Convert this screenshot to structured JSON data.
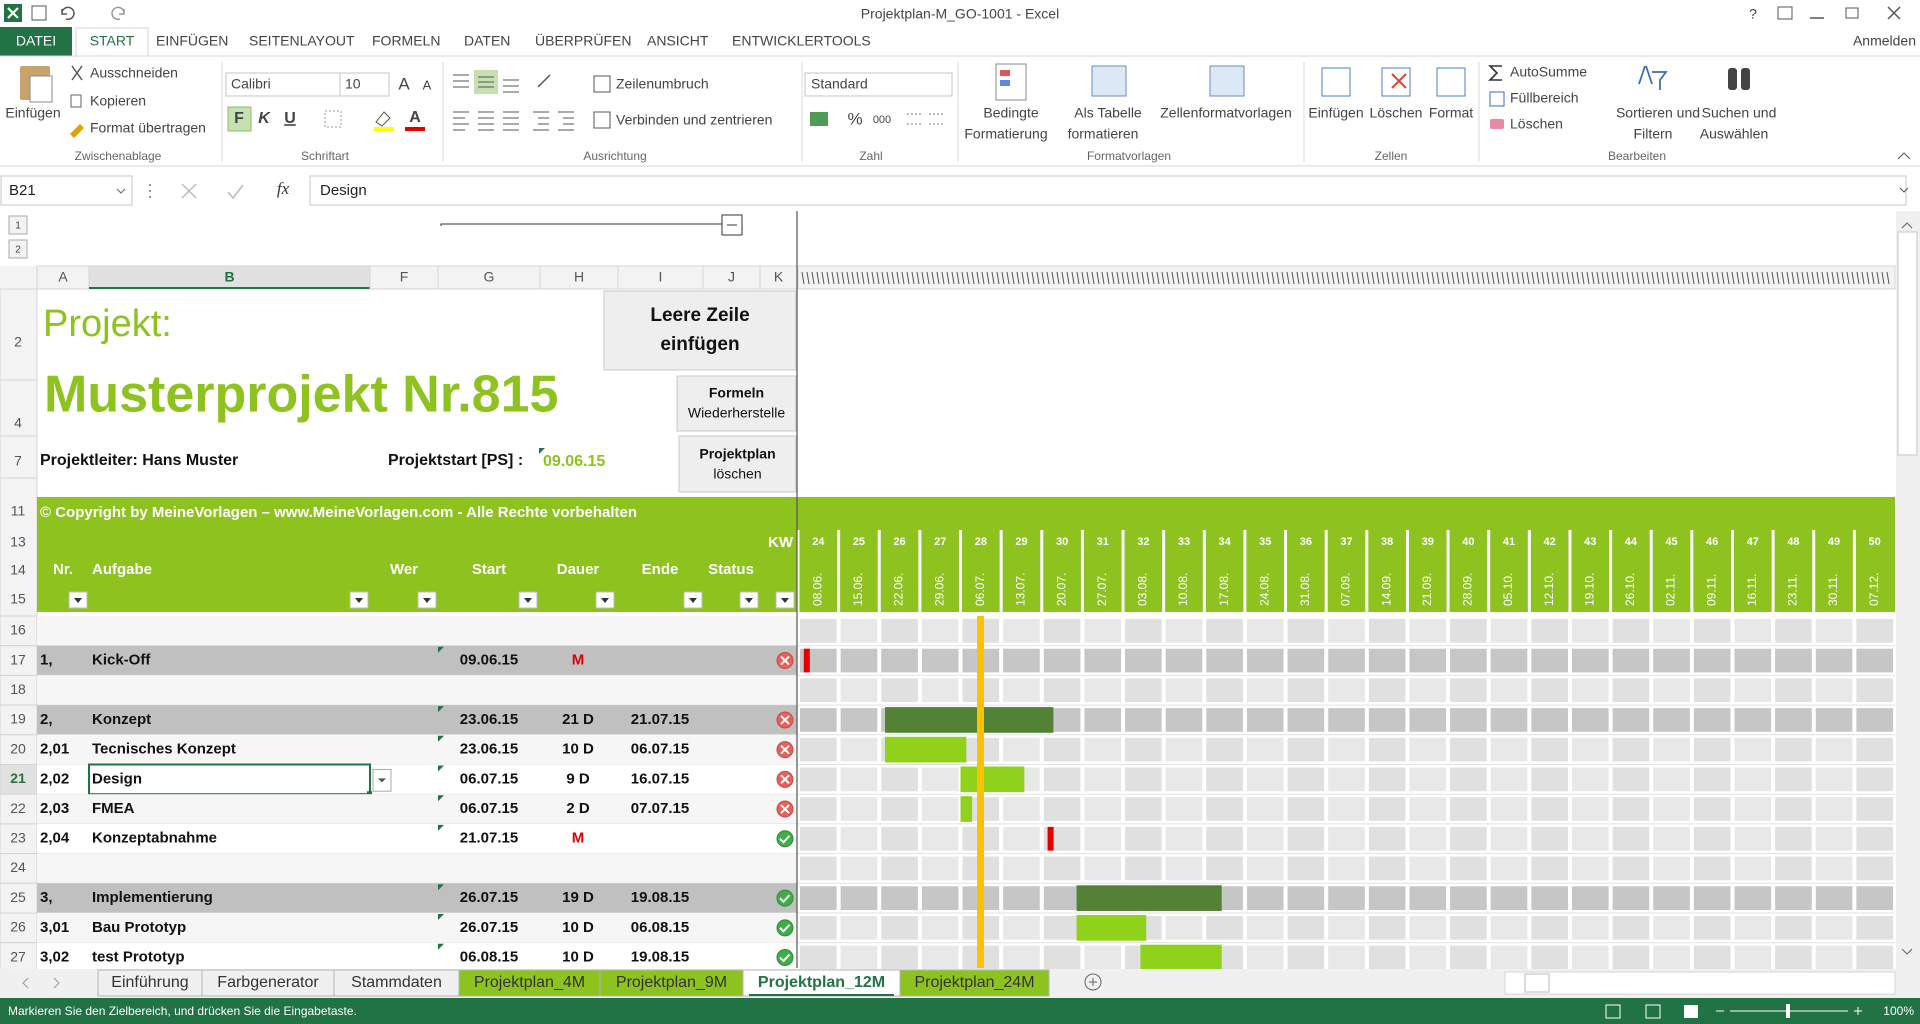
{
  "window": {
    "title": "Projektplan-M_GO-1001 - Excel",
    "help": "?",
    "account": "Anmelden"
  },
  "ribbon_tabs": [
    "DATEI",
    "START",
    "EINFÜGEN",
    "SEITENLAYOUT",
    "FORMELN",
    "DATEN",
    "ÜBERPRÜFEN",
    "ANSICHT",
    "ENTWICKLERTOOLS"
  ],
  "ribbon": {
    "clipboard": {
      "paste": "Einfügen",
      "cut": "Ausschneiden",
      "copy": "Kopieren",
      "format_painter": "Format übertragen",
      "label": "Zwischenablage"
    },
    "font": {
      "name": "Calibri",
      "size": "10",
      "grow": "A",
      "shrink": "A",
      "bold": "F",
      "italic": "K",
      "underline": "U",
      "color": "A",
      "label": "Schriftart"
    },
    "alignment": {
      "wrap": "Zeilenumbruch",
      "merge": "Verbinden und zentrieren",
      "label": "Ausrichtung"
    },
    "number": {
      "format": "Standard",
      "percent": "%",
      "thousands": "000",
      "label": "Zahl"
    },
    "styles": {
      "conditional": [
        "Bedingte",
        "Formatierung"
      ],
      "table": [
        "Als Tabelle",
        "formatieren"
      ],
      "cell_styles": "Zellenformatvorlagen",
      "label": "Formatvorlagen"
    },
    "cells": {
      "insert": "Einfügen",
      "delete": "Löschen",
      "format": "Format",
      "label": "Zellen"
    },
    "editing": {
      "autosum": "AutoSumme",
      "fill": "Füllbereich",
      "clear": "Löschen",
      "sort": [
        "Sortieren und",
        "Filtern"
      ],
      "find": [
        "Suchen und",
        "Auswählen"
      ],
      "label": "Bearbeiten"
    }
  },
  "formula_bar": {
    "name_box": "B21",
    "fx": "fx",
    "content": "Design"
  },
  "outline_levels": [
    "1",
    "2"
  ],
  "columns": [
    "A",
    "B",
    "F",
    "G",
    "H",
    "I",
    "J",
    "K"
  ],
  "sheet": {
    "project_label": "Projekt:",
    "project_name": "Musterprojekt Nr.815",
    "manager": "Projektleiter: Hans Muster",
    "start_label": "Projektstart [PS] :",
    "start_date": "09.06.15",
    "buttons": [
      [
        "Leere Zeile",
        "einfügen"
      ],
      [
        "Formeln",
        "Wiederherstelle"
      ],
      [
        "Projektplan",
        "löschen"
      ]
    ],
    "copyright": "© Copyright by MeineVorlagen – www.MeineVorlagen.com - Alle Rechte vorbehalten",
    "header_rows": [
      "2",
      "4",
      "7",
      "11",
      "13",
      "14",
      "15"
    ],
    "kw_label": "KW",
    "headers": [
      "Nr.",
      "Aufgabe",
      "Wer",
      "Start",
      "Dauer",
      "Ende",
      "Status"
    ],
    "weeks": [
      24,
      25,
      26,
      27,
      28,
      29,
      30,
      31,
      32,
      33,
      34,
      35,
      36,
      37,
      38,
      39,
      40,
      41,
      42,
      43,
      44,
      45,
      46,
      47,
      48,
      49,
      50
    ],
    "week_dates": [
      "08.06.",
      "15.06.",
      "22.06.",
      "29.06.",
      "06.07.",
      "13.07.",
      "20.07.",
      "27.07.",
      "03.08.",
      "10.08.",
      "17.08.",
      "24.08.",
      "31.08.",
      "07.09.",
      "14.09.",
      "21.09.",
      "28.09.",
      "05.10.",
      "12.10.",
      "19.10.",
      "26.10.",
      "02.11.",
      "09.11.",
      "16.11.",
      "23.11.",
      "30.11.",
      "07.12."
    ],
    "rows": [
      {
        "row": "16"
      },
      {
        "row": "17",
        "nr": "1,",
        "task": "Kick-Off",
        "start": "09.06.15",
        "duration": "M",
        "icon": "cross"
      },
      {
        "row": "18"
      },
      {
        "row": "19",
        "nr": "2,",
        "task": "Konzept",
        "start": "23.06.15",
        "duration": "21 D",
        "end": "21.07.15",
        "icon": "cross"
      },
      {
        "row": "20",
        "nr": "2,01",
        "task": "Tecnisches Konzept",
        "start": "23.06.15",
        "duration": "10 D",
        "end": "06.07.15",
        "icon": "cross"
      },
      {
        "row": "21",
        "nr": "2,02",
        "task": "Design",
        "start": "06.07.15",
        "duration": "9 D",
        "end": "16.07.15",
        "icon": "cross"
      },
      {
        "row": "22",
        "nr": "2,03",
        "task": "FMEA",
        "start": "06.07.15",
        "duration": "2 D",
        "end": "07.07.15",
        "icon": "cross"
      },
      {
        "row": "23",
        "nr": "2,04",
        "task": "Konzeptabnahme",
        "start": "21.07.15",
        "duration": "M",
        "icon": "check"
      },
      {
        "row": "24"
      },
      {
        "row": "25",
        "nr": "3,",
        "task": "Implementierung",
        "start": "26.07.15",
        "duration": "19 D",
        "end": "19.08.15",
        "icon": "check"
      },
      {
        "row": "26",
        "nr": "3,01",
        "task": "Bau Prototyp",
        "start": "26.07.15",
        "duration": "10 D",
        "end": "06.08.15",
        "icon": "check"
      },
      {
        "row": "27",
        "nr": "3,02",
        "task": "test Prototyp",
        "start": "06.08.15",
        "duration": "10 D",
        "end": "19.08.15",
        "icon": "check"
      }
    ]
  },
  "sheet_tabs": {
    "tabs": [
      {
        "label": "Einführung"
      },
      {
        "label": "Farbgenerator"
      },
      {
        "label": "Stammdaten"
      },
      {
        "label": "Projektplan_4M",
        "color": "#8dc21f"
      },
      {
        "label": "Projektplan_9M",
        "color": "#8dc21f"
      },
      {
        "label": "Projektplan_12M",
        "color": "#8dc21f"
      },
      {
        "label": "Projektplan_24M",
        "color": "#8dc21f"
      }
    ],
    "active": 5
  },
  "status_bar": {
    "message": "Markieren Sie den Zielbereich, und drücken Sie die Eingabetaste.",
    "zoom": "100%"
  }
}
